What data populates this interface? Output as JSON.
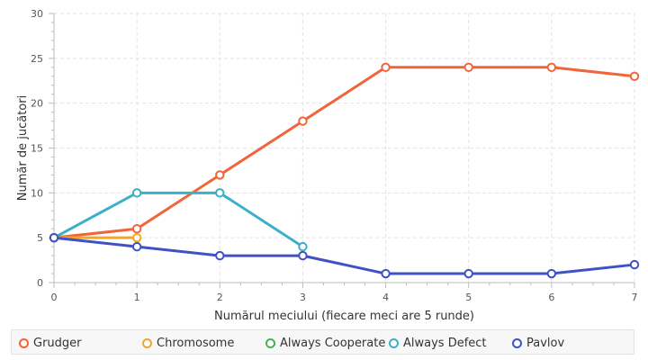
{
  "chart_data": {
    "type": "line",
    "title": "",
    "xlabel": "Numărul meciului (fiecare meci are 5 runde)",
    "ylabel": "Număr de jucători",
    "xlim": [
      0,
      7
    ],
    "ylim": [
      0,
      30
    ],
    "x_ticks": [
      0,
      1,
      2,
      3,
      4,
      5,
      6,
      7
    ],
    "y_ticks": [
      0,
      5,
      10,
      15,
      20,
      25,
      30
    ],
    "grid": true,
    "legend_position": "bottom",
    "series": [
      {
        "name": "Grudger",
        "color": "#f0653a",
        "x": [
          0,
          1,
          2,
          3,
          4,
          5,
          6,
          7
        ],
        "y": [
          5,
          6,
          12,
          18,
          24,
          24,
          24,
          23
        ]
      },
      {
        "name": "Chromosome",
        "color": "#f5a623",
        "x": [
          0,
          1
        ],
        "y": [
          5,
          5
        ]
      },
      {
        "name": "Always Cooperate",
        "color": "#4caf50",
        "x": [],
        "y": []
      },
      {
        "name": "Always Defect",
        "color": "#3cb0c9",
        "x": [
          0,
          1,
          2,
          3
        ],
        "y": [
          5,
          10,
          10,
          4
        ]
      },
      {
        "name": "Pavlov",
        "color": "#3f51c4",
        "x": [
          0,
          1,
          2,
          3,
          4,
          5,
          6,
          7
        ],
        "y": [
          5,
          4,
          3,
          3,
          1,
          1,
          1,
          2
        ]
      }
    ]
  }
}
